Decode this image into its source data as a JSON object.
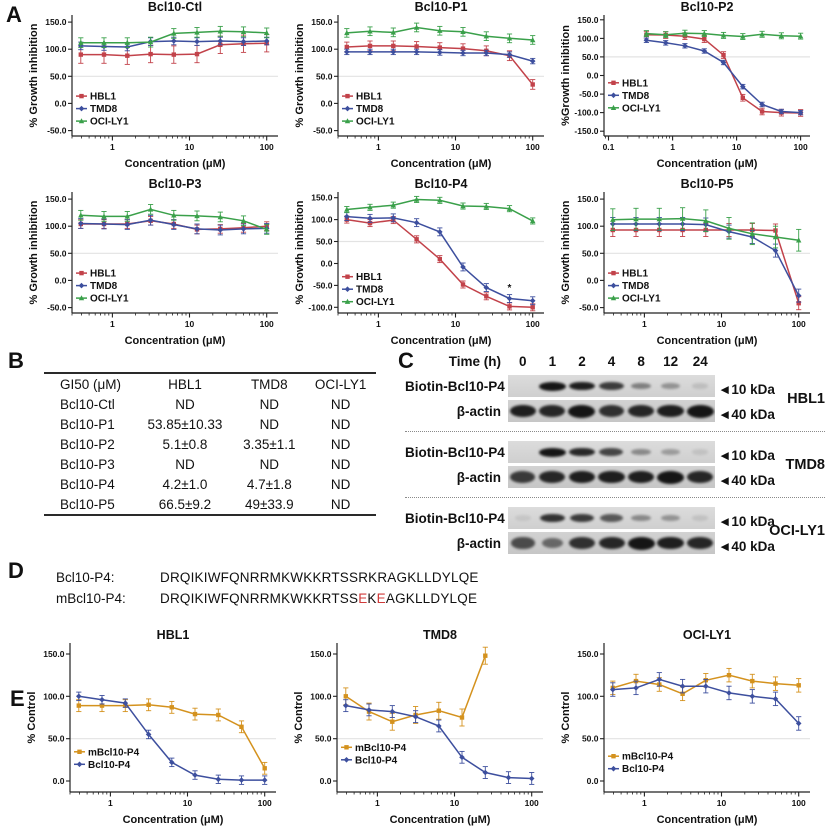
{
  "panels": {
    "a": "A",
    "b": "B",
    "c": "C",
    "d": "D",
    "e": "E"
  },
  "accent_colors": {
    "hbl1_red": "#C2424A",
    "tmd8_blue": "#3D4F9E",
    "oci_green": "#3AA04A",
    "mutant_orange": "#D4921E",
    "mutation_red": "#D03A3A"
  },
  "chart_data": {
    "panelA": [
      {
        "type": "line",
        "title": "Bcl10-Ctl",
        "xlabel": "Concentration (μM)",
        "ylabel": "% Growth inhibition",
        "xscale": "log",
        "xlim": [
          0.3,
          140
        ],
        "ylim": [
          -60,
          163
        ],
        "xticks": [
          "1",
          "10",
          "100"
        ],
        "yticks": [
          "150.0",
          "100.0",
          "50.0",
          "0.0",
          "-50.0"
        ],
        "ref_line_y": 50,
        "legend_frac": 0.67,
        "x": [
          0.39,
          0.78,
          1.56,
          3.13,
          6.25,
          12.5,
          25,
          50,
          100
        ],
        "series": [
          {
            "name": "HBL1",
            "color": "#C2424A",
            "marker": "square",
            "values": [
              90,
              90,
              88,
              91,
              90,
              91,
              108,
              110,
              111
            ],
            "err": 16
          },
          {
            "name": "TMD8",
            "color": "#3D4F9E",
            "marker": "diamond",
            "values": [
              106,
              105,
              104,
              114,
              115,
              114,
              115,
              114,
              115
            ],
            "err": 7
          },
          {
            "name": "OCI-LY1",
            "color": "#3AA04A",
            "marker": "triangle",
            "values": [
              112,
              112,
              112,
              113,
              129,
              131,
              133,
              132,
              130
            ],
            "err": 9
          }
        ]
      },
      {
        "type": "line",
        "title": "Bcl10-P1",
        "xlabel": "Concentration (μM)",
        "ylabel": "% Growth inhibition",
        "xscale": "log",
        "xlim": [
          0.3,
          140
        ],
        "ylim": [
          -60,
          163
        ],
        "xticks": [
          "1",
          "10",
          "100"
        ],
        "yticks": [
          "150.0",
          "100.0",
          "50.0",
          "0.0",
          "-50.0"
        ],
        "ref_line_y": 50,
        "legend_frac": 0.67,
        "x": [
          0.39,
          0.78,
          1.56,
          3.13,
          6.25,
          12.5,
          25,
          50,
          100
        ],
        "series": [
          {
            "name": "HBL1",
            "color": "#C2424A",
            "marker": "square",
            "values": [
              104,
              106,
              106,
              105,
              103,
              101,
              97,
              88,
              35
            ],
            "err": 9
          },
          {
            "name": "TMD8",
            "color": "#3D4F9E",
            "marker": "diamond",
            "values": [
              95,
              95,
              95,
              95,
              94,
              93,
              93,
              90,
              78
            ],
            "err": 5
          },
          {
            "name": "OCI-LY1",
            "color": "#3AA04A",
            "marker": "triangle",
            "values": [
              130,
              133,
              131,
              140,
              134,
              132,
              124,
              120,
              117
            ],
            "err": 8
          }
        ]
      },
      {
        "type": "line",
        "title": "Bcl10-P2",
        "xlabel": "Concentration (μM)",
        "ylabel": "%Growth inhibition",
        "xscale": "log",
        "xlim": [
          0.085,
          140
        ],
        "ylim": [
          -163,
          163
        ],
        "xticks": [
          "0.1",
          "1",
          "10",
          "100"
        ],
        "yticks": [
          "150.0",
          "100.0",
          "50.0",
          "0.0",
          "-50.0",
          "-100.0",
          "-150.0"
        ],
        "ref_line_y": 50,
        "legend_frac": 0.56,
        "x": [
          0.39,
          0.78,
          1.56,
          3.13,
          6.25,
          12.5,
          25,
          50,
          100
        ],
        "series": [
          {
            "name": "HBL1",
            "color": "#C2424A",
            "marker": "square",
            "values": [
              110,
              109,
              106,
              98,
              55,
              -60,
              -97,
              -100,
              -101
            ],
            "err": 9
          },
          {
            "name": "TMD8",
            "color": "#3D4F9E",
            "marker": "diamond",
            "values": [
              95,
              88,
              80,
              66,
              35,
              -30,
              -78,
              -97,
              -100
            ],
            "err": 6
          },
          {
            "name": "OCI-LY1",
            "color": "#3AA04A",
            "marker": "triangle",
            "values": [
              113,
              110,
              114,
              113,
              108,
              105,
              111,
              107,
              106
            ],
            "err": 8
          }
        ]
      },
      {
        "type": "line",
        "title": "Bcl10-P3",
        "xlabel": "Concentration (μM)",
        "ylabel": "% Growth inhibition",
        "xscale": "log",
        "xlim": [
          0.3,
          140
        ],
        "ylim": [
          -60,
          163
        ],
        "xticks": [
          "1",
          "10",
          "100"
        ],
        "yticks": [
          "150.0",
          "100.0",
          "50.0",
          "0.0",
          "-50.0"
        ],
        "ref_line_y": 50,
        "legend_frac": 0.67,
        "x": [
          0.39,
          0.78,
          1.56,
          3.13,
          6.25,
          12.5,
          25,
          50,
          100
        ],
        "series": [
          {
            "name": "HBL1",
            "color": "#C2424A",
            "marker": "square",
            "values": [
              104,
              104,
              104,
              110,
              104,
              94,
              95,
              97,
              100
            ],
            "err": 8
          },
          {
            "name": "TMD8",
            "color": "#3D4F9E",
            "marker": "diamond",
            "values": [
              105,
              104,
              103,
              111,
              103,
              95,
              93,
              95,
              96
            ],
            "err": 9
          },
          {
            "name": "OCI-LY1",
            "color": "#3AA04A",
            "marker": "triangle",
            "values": [
              120,
              118,
              118,
              131,
              120,
              119,
              117,
              110,
              94
            ],
            "err": 9
          }
        ]
      },
      {
        "type": "line",
        "title": "Bcl10-P4",
        "xlabel": "Concentration (μM)",
        "ylabel": "% Growth inhibition",
        "xscale": "log",
        "xlim": [
          0.3,
          140
        ],
        "ylim": [
          -113,
          163
        ],
        "xticks": [
          "1",
          "10",
          "100"
        ],
        "yticks": [
          "150.0",
          "100.0",
          "50.0",
          "0.0",
          "-50.0",
          "-100.0"
        ],
        "ref_line_y": 50,
        "legend_frac": 0.7,
        "x": [
          0.39,
          0.78,
          1.56,
          3.13,
          6.25,
          12.5,
          25,
          50,
          100
        ],
        "annotations": [
          {
            "text": "*",
            "x": 50,
            "y": -63
          }
        ],
        "series": [
          {
            "name": "HBL1",
            "color": "#C2424A",
            "marker": "square",
            "values": [
              100,
              92,
              99,
              55,
              10,
              -48,
              -75,
              -98,
              -100
            ],
            "err": 8
          },
          {
            "name": "TMD8",
            "color": "#3D4F9E",
            "marker": "diamond",
            "values": [
              107,
              103,
              104,
              93,
              72,
              -8,
              -55,
              -80,
              -85
            ],
            "err": 9
          },
          {
            "name": "OCI-LY1",
            "color": "#3AA04A",
            "marker": "triangle",
            "values": [
              123,
              128,
              133,
              146,
              144,
              131,
              130,
              125,
              97
            ],
            "err": 7
          }
        ]
      },
      {
        "type": "line",
        "title": "Bcl10-P5",
        "xlabel": "Concentration (μM)",
        "ylabel": "% Growth inhibition",
        "xscale": "log",
        "xlim": [
          0.3,
          140
        ],
        "ylim": [
          -60,
          163
        ],
        "xticks": [
          "1",
          "10",
          "100"
        ],
        "yticks": [
          "150.0",
          "100.0",
          "50.0",
          "0.0",
          "-50.0"
        ],
        "ref_line_y": 50,
        "legend_frac": 0.67,
        "x": [
          0.39,
          0.78,
          1.56,
          3.13,
          6.25,
          12.5,
          25,
          50,
          100
        ],
        "series": [
          {
            "name": "HBL1",
            "color": "#C2424A",
            "marker": "square",
            "values": [
              93,
              93,
              93,
              93,
              93,
              93,
              93,
              92,
              -42
            ],
            "err": 12
          },
          {
            "name": "TMD8",
            "color": "#3D4F9E",
            "marker": "diamond",
            "values": [
              104,
              104,
              104,
              104,
              103,
              90,
              80,
              55,
              -28
            ],
            "err": 12
          },
          {
            "name": "OCI-LY1",
            "color": "#3AA04A",
            "marker": "triangle",
            "values": [
              112,
              113,
              113,
              114,
              110,
              96,
              86,
              80,
              74
            ],
            "err": 20
          }
        ]
      }
    ],
    "panelE": [
      {
        "type": "line",
        "title": "HBL1",
        "xlabel": "Concentration (μM)",
        "ylabel": "% Control",
        "xscale": "log",
        "xlim": [
          0.3,
          140
        ],
        "ylim": [
          -13,
          163
        ],
        "xticks": [
          "1",
          "10",
          "100"
        ],
        "yticks": [
          "150.0",
          "100.0",
          "50.0",
          "0.0"
        ],
        "ref_line_y": 50,
        "legend_frac": 0.73,
        "x": [
          0.39,
          0.78,
          1.56,
          3.13,
          6.25,
          12.5,
          25,
          50,
          100
        ],
        "series": [
          {
            "name": "mBcl10-P4",
            "color": "#D4921E",
            "marker": "square",
            "values": [
              89,
              89,
              89,
              90,
              87,
              79,
              78,
              64,
              15
            ],
            "err": 7
          },
          {
            "name": "Bcl10-P4",
            "color": "#3D4F9E",
            "marker": "diamond",
            "values": [
              100,
              96,
              92,
              55,
              22,
              7,
              2,
              1,
              1
            ],
            "err": 5
          }
        ]
      },
      {
        "type": "line",
        "title": "TMD8",
        "xlabel": "Concentration (μM)",
        "ylabel": "% Control",
        "xscale": "log",
        "xlim": [
          0.3,
          140
        ],
        "ylim": [
          -13,
          163
        ],
        "xticks": [
          "1",
          "10",
          "100"
        ],
        "yticks": [
          "150.0",
          "100.0",
          "50.0",
          "0.0"
        ],
        "ref_line_y": 50,
        "legend_frac": 0.7,
        "x": [
          0.39,
          0.78,
          1.56,
          3.13,
          6.25,
          12.5,
          25,
          50,
          100
        ],
        "series": [
          {
            "name": "mBcl10-P4",
            "color": "#D4921E",
            "marker": "square",
            "x": [
              0.39,
              0.78,
              1.56,
              3.13,
              6.25,
              12.5,
              25
            ],
            "values": [
              100,
              82,
              70,
              78,
              83,
              75,
              148
            ],
            "err": 10
          },
          {
            "name": "Bcl10-P4",
            "color": "#3D4F9E",
            "marker": "diamond",
            "values": [
              89,
              84,
              82,
              76,
              65,
              28,
              10,
              4,
              3
            ],
            "err": 7
          }
        ]
      },
      {
        "type": "line",
        "title": "OCI-LY1",
        "xlabel": "Concentration (μM)",
        "ylabel": "% Control",
        "xscale": "log",
        "xlim": [
          0.3,
          140
        ],
        "ylim": [
          -13,
          163
        ],
        "xticks": [
          "1",
          "10",
          "100"
        ],
        "yticks": [
          "150.0",
          "100.0",
          "50.0",
          "0.0"
        ],
        "ref_line_y": 50,
        "legend_frac": 0.76,
        "x": [
          0.39,
          0.78,
          1.56,
          3.13,
          6.25,
          12.5,
          25,
          50,
          100
        ],
        "series": [
          {
            "name": "mBcl10-P4",
            "color": "#D4921E",
            "marker": "square",
            "values": [
              110,
              118,
              114,
              103,
              119,
              125,
              118,
              115,
              113
            ],
            "err": 8
          },
          {
            "name": "Bcl10-P4",
            "color": "#3D4F9E",
            "marker": "diamond",
            "values": [
              108,
              110,
              120,
              112,
              112,
              104,
              100,
              97,
              68
            ],
            "err": 8
          }
        ]
      }
    ]
  },
  "panelB": {
    "table": {
      "headers": [
        "GI50 (μM)",
        "HBL1",
        "TMD8",
        "OCI-LY1"
      ],
      "rows": [
        [
          "Bcl10-Ctl",
          "ND",
          "ND",
          "ND"
        ],
        [
          "Bcl10-P1",
          "53.85±10.33",
          "ND",
          "ND"
        ],
        [
          "Bcl10-P2",
          "5.1±0.8",
          "3.35±1.1",
          "ND"
        ],
        [
          "Bcl10-P3",
          "ND",
          "ND",
          "ND"
        ],
        [
          "Bcl10-P4",
          "4.2±1.0",
          "4.7±1.8",
          "ND"
        ],
        [
          "Bcl10-P5",
          "66.5±9.2",
          "49±33.9",
          "ND"
        ]
      ]
    }
  },
  "panelC": {
    "time_header": "Time (h)",
    "time_points": [
      "0",
      "1",
      "2",
      "4",
      "8",
      "12",
      "24"
    ],
    "arrow": "◄",
    "groups": [
      {
        "cell_line": "HBL1",
        "rows": [
          {
            "label": "Biotin-Bcl10-P4",
            "kind": "biotin",
            "marker": "10 kDa",
            "bands": [
              0.03,
              1.0,
              0.95,
              0.8,
              0.45,
              0.35,
              0.12
            ]
          },
          {
            "label": "β-actin",
            "kind": "actin",
            "marker": "40 kDa",
            "bands": [
              0.95,
              0.9,
              1.0,
              0.85,
              0.9,
              0.95,
              1.0
            ]
          }
        ]
      },
      {
        "cell_line": "TMD8",
        "rows": [
          {
            "label": "Biotin-Bcl10-P4",
            "kind": "biotin",
            "marker": "10 kDa",
            "bands": [
              0.03,
              1.0,
              0.9,
              0.75,
              0.4,
              0.3,
              0.1
            ]
          },
          {
            "label": "β-actin",
            "kind": "actin",
            "marker": "40 kDa",
            "bands": [
              0.8,
              0.9,
              0.95,
              0.95,
              0.95,
              1.0,
              0.9
            ]
          }
        ]
      },
      {
        "cell_line": "OCI-LY1",
        "rows": [
          {
            "label": "Biotin-Bcl10-P4",
            "kind": "biotin",
            "marker": "10 kDa",
            "bands": [
              0.08,
              0.85,
              0.8,
              0.65,
              0.4,
              0.35,
              0.1
            ]
          },
          {
            "label": "β-actin",
            "kind": "actin",
            "marker": "40 kDa",
            "bands": [
              0.7,
              0.55,
              0.85,
              0.9,
              1.0,
              0.95,
              0.9
            ]
          }
        ]
      }
    ]
  },
  "panelD": {
    "rows": [
      {
        "name": "Bcl10-P4:",
        "segments": [
          {
            "t": "DRQIKIWFQNRRMKWKKRTSSRKRAGKLLDYLQE"
          }
        ]
      },
      {
        "name": "mBcl10-P4:",
        "segments": [
          {
            "t": "DRQIKIWFQNRRMKWKKRTSS"
          },
          {
            "t": "E",
            "red": true
          },
          {
            "t": "K"
          },
          {
            "t": "E",
            "red": true
          },
          {
            "t": "AGKLLDYLQE"
          }
        ]
      }
    ]
  }
}
